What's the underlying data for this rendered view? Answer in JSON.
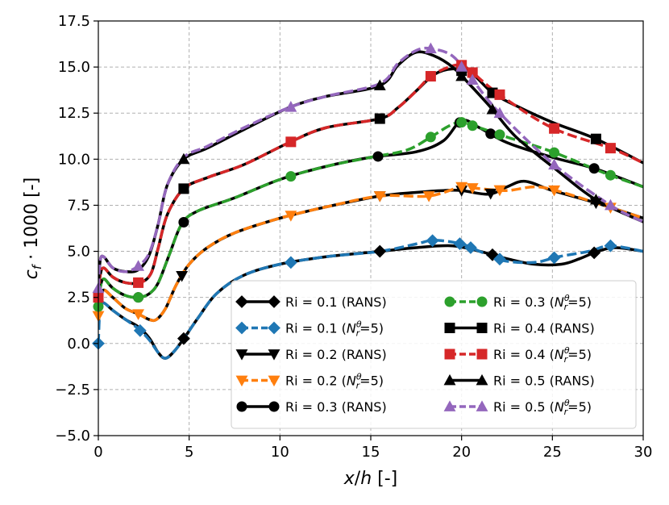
{
  "chart_data": {
    "type": "line",
    "xlabel": "x/h [-]",
    "ylabel": "c_f · 1000 [-]",
    "xlim": [
      0,
      30
    ],
    "ylim": [
      -5.0,
      17.5
    ],
    "x_ticks": [
      0,
      5,
      10,
      15,
      20,
      25,
      30
    ],
    "x_tick_labels": [
      "0",
      "5",
      "10",
      "15",
      "20",
      "25",
      "30"
    ],
    "y_ticks": [
      -5.0,
      -2.5,
      0.0,
      2.5,
      5.0,
      7.5,
      10.0,
      12.5,
      15.0,
      17.5
    ],
    "y_tick_labels": [
      "−5.0",
      "−2.5",
      "0.0",
      "2.5",
      "5.0",
      "7.5",
      "10.0",
      "12.5",
      "15.0",
      "17.5"
    ],
    "grid": true,
    "legend_position": "lower-right",
    "series": [
      {
        "name": "Ri = 0.1 (RANS)",
        "color": "#000000",
        "marker": "diamond",
        "dashed": false,
        "points": [
          [
            0,
            1.0
          ],
          [
            0.1,
            2.0
          ],
          [
            0.3,
            2.2
          ],
          [
            0.8,
            1.8
          ],
          [
            1.5,
            1.3
          ],
          [
            2.2,
            0.9
          ],
          [
            2.8,
            0.3
          ],
          [
            3.3,
            -0.5
          ],
          [
            3.7,
            -0.8
          ],
          [
            4.2,
            -0.4
          ],
          [
            4.8,
            0.4
          ],
          [
            5.5,
            1.4
          ],
          [
            6.5,
            2.7
          ],
          [
            8,
            3.7
          ],
          [
            10,
            4.3
          ],
          [
            12.5,
            4.7
          ],
          [
            15.5,
            5.0
          ],
          [
            17.5,
            5.2
          ],
          [
            19.5,
            5.3
          ],
          [
            21,
            5.0
          ],
          [
            22.5,
            4.6
          ],
          [
            24,
            4.3
          ],
          [
            25.5,
            4.3
          ],
          [
            26.5,
            4.6
          ],
          [
            27.5,
            5.0
          ],
          [
            28.5,
            5.2
          ],
          [
            30,
            5.0
          ]
        ],
        "marker_x": [
          4.7,
          15.5,
          21.7,
          27.3
        ]
      },
      {
        "name": "Ri = 0.1 (N_r^θ=5)",
        "color": "#1f77b4",
        "marker": "diamond",
        "dashed": true,
        "points": [
          [
            0,
            0.0
          ],
          [
            0.1,
            2.0
          ],
          [
            0.3,
            2.2
          ],
          [
            0.8,
            1.8
          ],
          [
            1.5,
            1.3
          ],
          [
            2.2,
            0.8
          ],
          [
            2.8,
            0.2
          ],
          [
            3.3,
            -0.5
          ],
          [
            3.7,
            -0.8
          ],
          [
            4.2,
            -0.4
          ],
          [
            4.8,
            0.4
          ],
          [
            5.5,
            1.4
          ],
          [
            6.5,
            2.7
          ],
          [
            8,
            3.7
          ],
          [
            10,
            4.3
          ],
          [
            12.5,
            4.7
          ],
          [
            15.5,
            5.0
          ],
          [
            17.5,
            5.4
          ],
          [
            18.5,
            5.6
          ],
          [
            20,
            5.4
          ],
          [
            21,
            5.0
          ],
          [
            22.3,
            4.5
          ],
          [
            24,
            4.4
          ],
          [
            25.3,
            4.7
          ],
          [
            27,
            5.0
          ],
          [
            28.2,
            5.3
          ],
          [
            30,
            5.0
          ]
        ],
        "marker_x": [
          0,
          2.3,
          10.6,
          18.4,
          19.9,
          20.5,
          22.1,
          25.1,
          28.2
        ]
      },
      {
        "name": "Ri = 0.2 (RANS)",
        "color": "#000000",
        "marker": "triangle-down",
        "dashed": false,
        "points": [
          [
            0,
            1.5
          ],
          [
            0.1,
            2.4
          ],
          [
            0.3,
            2.9
          ],
          [
            0.8,
            2.5
          ],
          [
            1.5,
            1.9
          ],
          [
            2.2,
            1.6
          ],
          [
            2.8,
            1.3
          ],
          [
            3.2,
            1.3
          ],
          [
            3.7,
            1.9
          ],
          [
            4.3,
            3.2
          ],
          [
            5,
            4.3
          ],
          [
            6,
            5.2
          ],
          [
            7.5,
            6.0
          ],
          [
            10,
            6.8
          ],
          [
            12.5,
            7.4
          ],
          [
            15.5,
            8.0
          ],
          [
            17.5,
            8.2
          ],
          [
            19,
            8.3
          ],
          [
            20,
            8.3
          ],
          [
            21.5,
            8.1
          ],
          [
            22.5,
            8.5
          ],
          [
            23.5,
            8.8
          ],
          [
            25,
            8.3
          ],
          [
            27.5,
            7.6
          ],
          [
            30,
            6.8
          ]
        ],
        "marker_x": [
          4.6,
          15.5,
          20.0,
          21.6,
          27.4
        ]
      },
      {
        "name": "Ri = 0.2 (N_r^θ=5)",
        "color": "#ff7f0e",
        "marker": "triangle-down",
        "dashed": true,
        "points": [
          [
            0,
            1.5
          ],
          [
            0.1,
            2.4
          ],
          [
            0.3,
            2.9
          ],
          [
            0.8,
            2.5
          ],
          [
            1.5,
            1.9
          ],
          [
            2.2,
            1.6
          ],
          [
            2.8,
            1.3
          ],
          [
            3.2,
            1.3
          ],
          [
            3.7,
            1.9
          ],
          [
            4.3,
            3.2
          ],
          [
            5,
            4.3
          ],
          [
            6,
            5.2
          ],
          [
            7.5,
            6.0
          ],
          [
            10,
            6.8
          ],
          [
            12.5,
            7.4
          ],
          [
            15.5,
            8.0
          ],
          [
            18.2,
            8.0
          ],
          [
            20,
            8.5
          ],
          [
            21,
            8.4
          ],
          [
            22.5,
            8.3
          ],
          [
            24,
            8.5
          ],
          [
            25.2,
            8.3
          ],
          [
            27.5,
            7.6
          ],
          [
            30,
            6.8
          ]
        ],
        "marker_x": [
          0,
          2.2,
          10.6,
          15.5,
          18.2,
          20.0,
          20.6,
          22.1,
          25.1,
          28.2
        ]
      },
      {
        "name": "Ri = 0.3 (RANS)",
        "color": "#000000",
        "marker": "circle",
        "dashed": false,
        "points": [
          [
            0,
            2.0
          ],
          [
            0.1,
            3.0
          ],
          [
            0.3,
            3.5
          ],
          [
            0.8,
            3.0
          ],
          [
            1.5,
            2.6
          ],
          [
            2.2,
            2.5
          ],
          [
            2.8,
            2.7
          ],
          [
            3.3,
            3.3
          ],
          [
            3.9,
            4.8
          ],
          [
            4.6,
            6.5
          ],
          [
            5.5,
            7.2
          ],
          [
            7.5,
            7.9
          ],
          [
            10,
            8.9
          ],
          [
            12.5,
            9.6
          ],
          [
            15,
            10.1
          ],
          [
            17.5,
            10.4
          ],
          [
            19,
            11.0
          ],
          [
            20,
            12.1
          ],
          [
            21,
            11.7
          ],
          [
            22.5,
            10.9
          ],
          [
            25,
            10.1
          ],
          [
            27.3,
            9.5
          ],
          [
            30,
            8.5
          ]
        ],
        "marker_x": [
          2.2,
          4.7,
          15.4,
          19.9,
          21.6,
          27.3
        ]
      },
      {
        "name": "Ri = 0.3 (N_r^θ=5)",
        "color": "#2ca02c",
        "marker": "circle",
        "dashed": true,
        "points": [
          [
            0,
            2.0
          ],
          [
            0.1,
            3.0
          ],
          [
            0.3,
            3.5
          ],
          [
            0.8,
            3.0
          ],
          [
            1.5,
            2.6
          ],
          [
            2.2,
            2.5
          ],
          [
            2.8,
            2.7
          ],
          [
            3.3,
            3.3
          ],
          [
            3.9,
            4.8
          ],
          [
            4.6,
            6.5
          ],
          [
            5.5,
            7.2
          ],
          [
            7.5,
            7.9
          ],
          [
            10,
            8.9
          ],
          [
            12.5,
            9.6
          ],
          [
            15,
            10.1
          ],
          [
            17,
            10.5
          ],
          [
            18.3,
            11.2
          ],
          [
            19.3,
            11.8
          ],
          [
            20,
            12.0
          ],
          [
            21,
            11.7
          ],
          [
            22.5,
            11.2
          ],
          [
            25,
            10.4
          ],
          [
            28,
            9.2
          ],
          [
            30,
            8.5
          ]
        ],
        "marker_x": [
          0,
          2.2,
          10.6,
          18.3,
          20.0,
          20.6,
          22.1,
          25.1,
          28.2
        ]
      },
      {
        "name": "Ri = 0.4 (RANS)",
        "color": "#000000",
        "marker": "square",
        "dashed": false,
        "points": [
          [
            0,
            2.5
          ],
          [
            0.1,
            3.7
          ],
          [
            0.3,
            4.1
          ],
          [
            0.8,
            3.6
          ],
          [
            1.5,
            3.3
          ],
          [
            2.3,
            3.3
          ],
          [
            2.9,
            3.8
          ],
          [
            3.3,
            5.2
          ],
          [
            3.8,
            7.0
          ],
          [
            4.7,
            8.4
          ],
          [
            6,
            9.0
          ],
          [
            8,
            9.7
          ],
          [
            10.5,
            10.9
          ],
          [
            12.5,
            11.7
          ],
          [
            15.5,
            12.2
          ],
          [
            16.5,
            12.8
          ],
          [
            17.5,
            13.7
          ],
          [
            18.5,
            14.6
          ],
          [
            19.5,
            14.9
          ],
          [
            20.5,
            14.7
          ],
          [
            21.7,
            13.6
          ],
          [
            23,
            12.9
          ],
          [
            25,
            12.0
          ],
          [
            27.4,
            11.1
          ],
          [
            30,
            9.8
          ]
        ],
        "marker_x": [
          4.7,
          15.5,
          20.0,
          21.7,
          27.4
        ]
      },
      {
        "name": "Ri = 0.4 (N_r^θ=5)",
        "color": "#d62728",
        "marker": "square",
        "dashed": true,
        "points": [
          [
            0,
            2.5
          ],
          [
            0.1,
            3.7
          ],
          [
            0.3,
            4.1
          ],
          [
            0.8,
            3.6
          ],
          [
            1.5,
            3.3
          ],
          [
            2.3,
            3.3
          ],
          [
            2.9,
            3.8
          ],
          [
            3.3,
            5.2
          ],
          [
            3.8,
            7.0
          ],
          [
            4.7,
            8.4
          ],
          [
            6,
            9.0
          ],
          [
            8,
            9.7
          ],
          [
            10.5,
            10.9
          ],
          [
            12.5,
            11.7
          ],
          [
            15.5,
            12.2
          ],
          [
            16.5,
            12.8
          ],
          [
            17.5,
            13.7
          ],
          [
            18.3,
            14.5
          ],
          [
            19.3,
            15.0
          ],
          [
            20,
            15.1
          ],
          [
            20.6,
            14.7
          ],
          [
            22.1,
            13.5
          ],
          [
            25,
            11.7
          ],
          [
            28.2,
            10.6
          ],
          [
            30,
            9.8
          ]
        ],
        "marker_x": [
          0,
          2.2,
          10.6,
          18.3,
          20.0,
          20.6,
          22.1,
          25.1,
          28.2
        ]
      },
      {
        "name": "Ri = 0.5 (RANS)",
        "color": "#000000",
        "marker": "triangle-up",
        "dashed": false,
        "points": [
          [
            0,
            3.0
          ],
          [
            0.1,
            4.5
          ],
          [
            0.3,
            4.7
          ],
          [
            0.8,
            4.1
          ],
          [
            1.5,
            3.9
          ],
          [
            2.2,
            4.0
          ],
          [
            2.8,
            4.8
          ],
          [
            3.3,
            6.5
          ],
          [
            3.8,
            8.6
          ],
          [
            4.7,
            10.0
          ],
          [
            6,
            10.6
          ],
          [
            8,
            11.6
          ],
          [
            10.5,
            12.8
          ],
          [
            12.5,
            13.4
          ],
          [
            15.5,
            14.0
          ],
          [
            16.5,
            15.1
          ],
          [
            17.5,
            15.8
          ],
          [
            18.5,
            15.6
          ],
          [
            19.5,
            15.0
          ],
          [
            20.5,
            14.0
          ],
          [
            21.7,
            12.7
          ],
          [
            23,
            11.2
          ],
          [
            25,
            9.6
          ],
          [
            27.4,
            7.8
          ],
          [
            30,
            6.6
          ]
        ],
        "marker_x": [
          4.7,
          15.5,
          20.0,
          21.7,
          27.4
        ]
      },
      {
        "name": "Ri = 0.5 (N_r^θ=5)",
        "color": "#9467bd",
        "marker": "triangle-up",
        "dashed": true,
        "points": [
          [
            0,
            3.0
          ],
          [
            0.1,
            4.5
          ],
          [
            0.3,
            4.7
          ],
          [
            0.8,
            4.1
          ],
          [
            1.5,
            3.9
          ],
          [
            2.2,
            4.2
          ],
          [
            2.8,
            4.9
          ],
          [
            3.3,
            6.5
          ],
          [
            3.8,
            8.6
          ],
          [
            4.7,
            10.1
          ],
          [
            6,
            10.7
          ],
          [
            8,
            11.7
          ],
          [
            10.5,
            12.8
          ],
          [
            12.5,
            13.4
          ],
          [
            15.5,
            14.1
          ],
          [
            16.5,
            15.2
          ],
          [
            17.5,
            15.9
          ],
          [
            18.3,
            16.0
          ],
          [
            19.5,
            15.6
          ],
          [
            20.6,
            14.3
          ],
          [
            22.1,
            12.5
          ],
          [
            25.1,
            9.7
          ],
          [
            28.2,
            7.5
          ],
          [
            30,
            6.6
          ]
        ],
        "marker_x": [
          0,
          2.2,
          10.6,
          18.3,
          20.0,
          20.6,
          22.1,
          25.1,
          28.2
        ]
      }
    ]
  }
}
